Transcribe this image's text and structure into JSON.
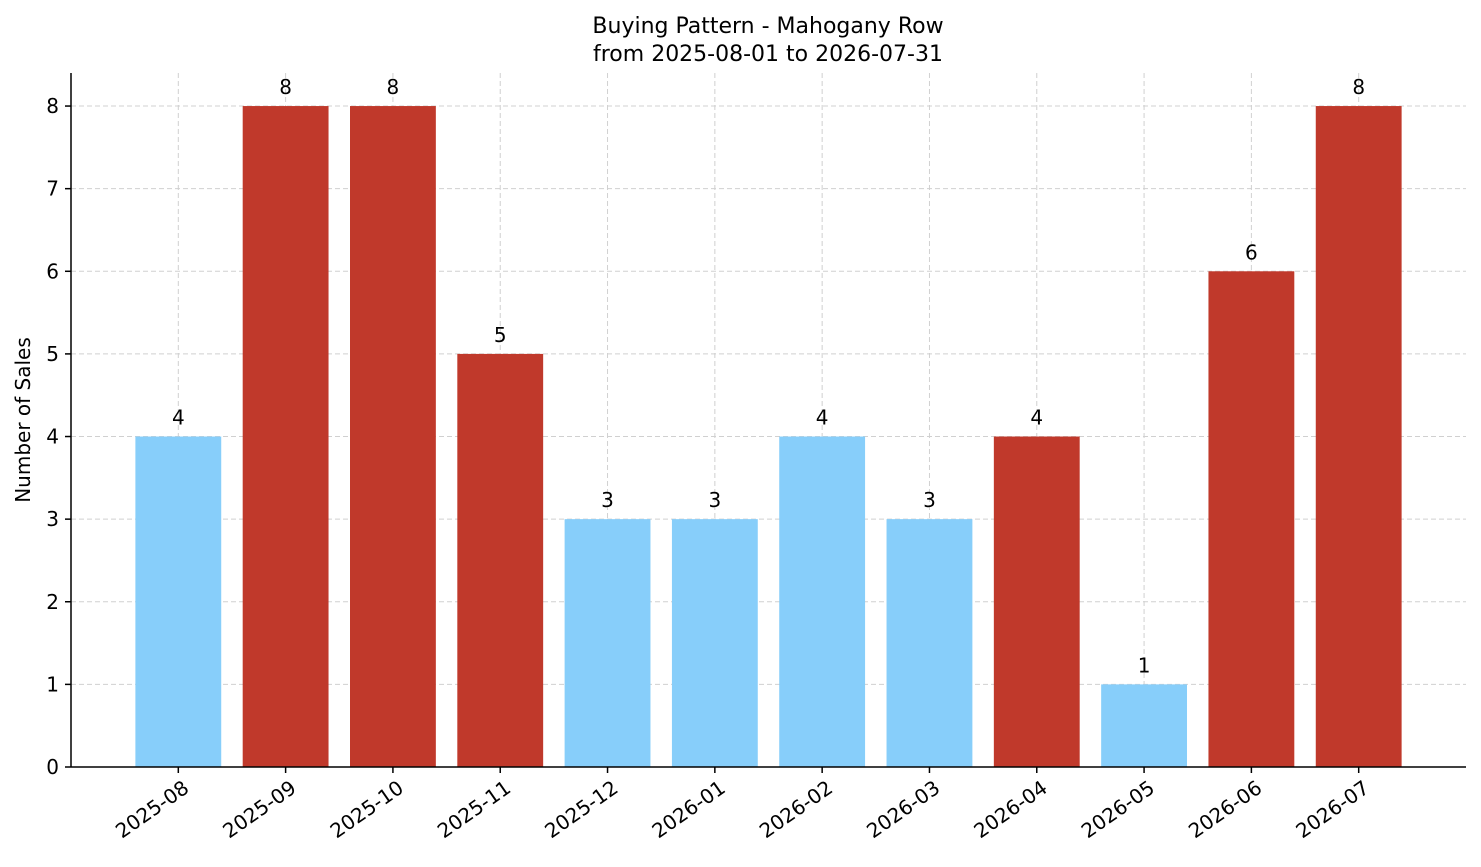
{
  "chart_data": {
    "type": "bar",
    "title": "Buying Pattern - Mahogany Row",
    "subtitle": "from 2025-08-01 to 2026-07-31",
    "ylabel": "Number of Sales",
    "categories": [
      "2025-08",
      "2025-09",
      "2025-10",
      "2025-11",
      "2025-12",
      "2026-01",
      "2026-02",
      "2026-03",
      "2026-04",
      "2026-05",
      "2026-06",
      "2026-07"
    ],
    "values": [
      4,
      8,
      8,
      5,
      3,
      3,
      4,
      3,
      4,
      1,
      6,
      8
    ],
    "colors": [
      "#87cefa",
      "#c0392b",
      "#c0392b",
      "#c0392b",
      "#87cefa",
      "#87cefa",
      "#87cefa",
      "#87cefa",
      "#c0392b",
      "#87cefa",
      "#c0392b",
      "#c0392b"
    ],
    "ylim": [
      0,
      8.4
    ],
    "yticks": [
      0,
      1,
      2,
      3,
      4,
      5,
      6,
      7,
      8
    ],
    "grid": true
  }
}
